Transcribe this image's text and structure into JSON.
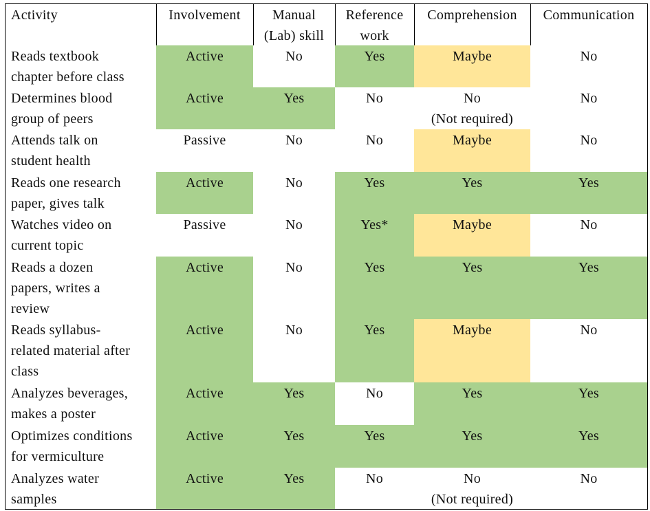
{
  "table": {
    "header": [
      "Activity",
      "Involvement",
      "Manual\n(Lab) skill",
      "Reference\nwork",
      "Comprehension",
      "Communication"
    ],
    "rows": [
      {
        "cells": [
          "Reads textbook\nchapter before class",
          "Active",
          "No",
          "Yes",
          "Maybe",
          "No"
        ],
        "fills": [
          "#ffffff",
          "#a9d18e",
          "#ffffff",
          "#a9d18e",
          "#ffe699",
          "#ffffff"
        ]
      },
      {
        "cells": [
          "Determines blood\ngroup of peers",
          "Active",
          "Yes",
          "No",
          "No\n(Not required)",
          "No"
        ],
        "fills": [
          "#ffffff",
          "#a9d18e",
          "#a9d18e",
          "#ffffff",
          "#ffffff",
          "#ffffff"
        ]
      },
      {
        "cells": [
          "Attends talk on\nstudent health",
          "Passive",
          "No",
          "No",
          "Maybe",
          "No"
        ],
        "fills": [
          "#ffffff",
          "#ffffff",
          "#ffffff",
          "#ffffff",
          "#ffe699",
          "#ffffff"
        ]
      },
      {
        "cells": [
          "Reads one research\npaper, gives talk",
          "Active",
          "No",
          "Yes",
          "Yes",
          "Yes"
        ],
        "fills": [
          "#ffffff",
          "#a9d18e",
          "#ffffff",
          "#a9d18e",
          "#a9d18e",
          "#a9d18e"
        ]
      },
      {
        "cells": [
          "Watches video on\ncurrent topic",
          "Passive",
          "No",
          "Yes*",
          "Maybe",
          "No"
        ],
        "fills": [
          "#ffffff",
          "#ffffff",
          "#ffffff",
          "#a9d18e",
          "#ffe699",
          "#ffffff"
        ]
      },
      {
        "cells": [
          "Reads a dozen\npapers, writes a\nreview",
          "Active",
          "No",
          "Yes",
          "Yes",
          "Yes"
        ],
        "fills": [
          "#ffffff",
          "#a9d18e",
          "#ffffff",
          "#a9d18e",
          "#a9d18e",
          "#a9d18e"
        ]
      },
      {
        "cells": [
          "Reads syllabus-\nrelated material after\nclass",
          "Active",
          "No",
          "Yes",
          "Maybe",
          "No"
        ],
        "fills": [
          "#ffffff",
          "#a9d18e",
          "#ffffff",
          "#a9d18e",
          "#ffe699",
          "#ffffff"
        ]
      },
      {
        "cells": [
          "Analyzes beverages,\nmakes a poster",
          "Active",
          "Yes",
          "No",
          "Yes",
          "Yes"
        ],
        "fills": [
          "#ffffff",
          "#a9d18e",
          "#a9d18e",
          "#ffffff",
          "#a9d18e",
          "#a9d18e"
        ]
      },
      {
        "cells": [
          "Optimizes conditions\nfor vermiculture",
          "Active",
          "Yes",
          "Yes",
          "Yes",
          "Yes"
        ],
        "fills": [
          "#ffffff",
          "#a9d18e",
          "#a9d18e",
          "#a9d18e",
          "#a9d18e",
          "#a9d18e"
        ]
      },
      {
        "cells": [
          "Analyzes water\nsamples",
          "Active",
          "Yes",
          "No",
          "No\n(Not required)",
          "No"
        ],
        "fills": [
          "#ffffff",
          "#a9d18e",
          "#a9d18e",
          "#ffffff",
          "#ffffff",
          "#ffffff"
        ]
      }
    ]
  }
}
